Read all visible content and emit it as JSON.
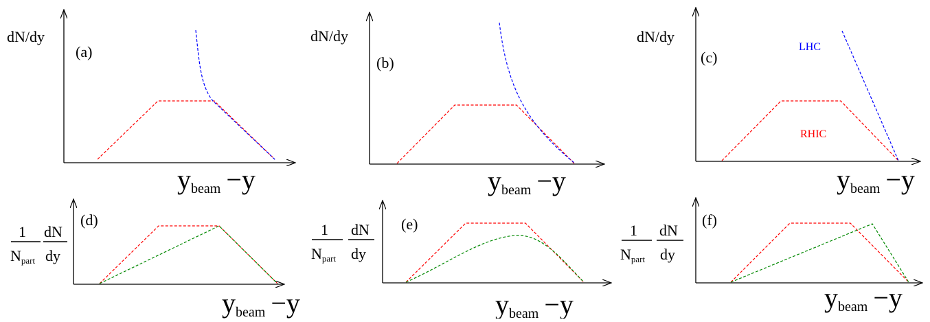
{
  "colors": {
    "red": "#ff0000",
    "blue": "#0000ff",
    "green": "#008800",
    "axis": "#000000"
  },
  "panels": [
    {
      "id": "a",
      "label": "(a)",
      "ylabel_type": "plain",
      "ylabel": "dN/dy",
      "xlabel_main": "y",
      "xlabel_sub": "beam",
      "xlabel_tail": "−y",
      "curves": [
        {
          "color": "red",
          "shape": "trapezoid"
        },
        {
          "color": "blue",
          "shape": "steep-then-linear-falloff"
        }
      ],
      "annotations": []
    },
    {
      "id": "b",
      "label": "(b)",
      "ylabel_type": "plain",
      "ylabel": "dN/dy",
      "xlabel_main": "y",
      "xlabel_sub": "beam",
      "xlabel_tail": "−y",
      "curves": [
        {
          "color": "red",
          "shape": "trapezoid"
        },
        {
          "color": "blue",
          "shape": "convex-falloff"
        }
      ],
      "annotations": []
    },
    {
      "id": "c",
      "label": "(c)",
      "ylabel_type": "plain",
      "ylabel": "dN/dy",
      "xlabel_main": "y",
      "xlabel_sub": "beam",
      "xlabel_tail": "−y",
      "curves": [
        {
          "color": "red",
          "shape": "trapezoid"
        },
        {
          "color": "blue",
          "shape": "straight-line-falloff"
        }
      ],
      "annotations": [
        {
          "text": "LHC",
          "color": "blue"
        },
        {
          "text": "RHIC",
          "color": "red"
        }
      ]
    },
    {
      "id": "d",
      "label": "(d)",
      "ylabel_type": "fraction",
      "ylabel_num_left": "1",
      "ylabel_den_left": "N",
      "ylabel_den_sub": "part",
      "ylabel_num_right": "dN",
      "ylabel_den_right": "dy",
      "xlabel_main": "y",
      "xlabel_sub": "beam",
      "xlabel_tail": "−y",
      "curves": [
        {
          "color": "red",
          "shape": "trapezoid"
        },
        {
          "color": "green",
          "shape": "triangle"
        }
      ],
      "annotations": []
    },
    {
      "id": "e",
      "label": "(e)",
      "ylabel_type": "fraction",
      "ylabel_num_left": "1",
      "ylabel_den_left": "N",
      "ylabel_den_sub": "part",
      "ylabel_num_right": "dN",
      "ylabel_den_right": "dy",
      "xlabel_main": "y",
      "xlabel_sub": "beam",
      "xlabel_tail": "−y",
      "curves": [
        {
          "color": "red",
          "shape": "trapezoid"
        },
        {
          "color": "green",
          "shape": "smooth-hump"
        }
      ],
      "annotations": []
    },
    {
      "id": "f",
      "label": "(f)",
      "ylabel_type": "fraction",
      "ylabel_num_left": "1",
      "ylabel_den_left": "N",
      "ylabel_den_sub": "part",
      "ylabel_num_right": "dN",
      "ylabel_den_right": "dy",
      "xlabel_main": "y",
      "xlabel_sub": "beam",
      "xlabel_tail": "−y",
      "curves": [
        {
          "color": "red",
          "shape": "trapezoid"
        },
        {
          "color": "green",
          "shape": "skewed-triangle"
        }
      ],
      "annotations": []
    }
  ]
}
